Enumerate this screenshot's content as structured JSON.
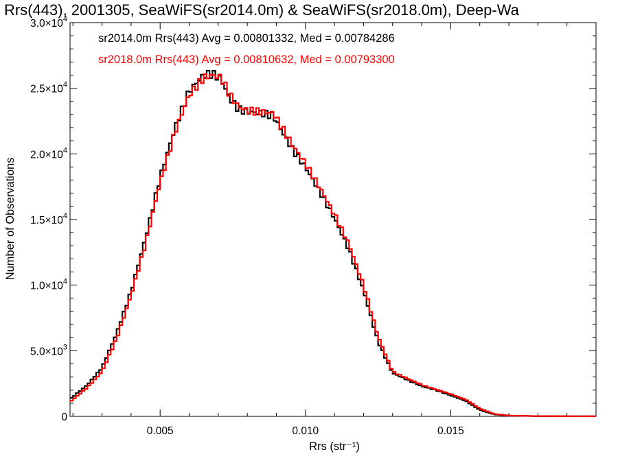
{
  "chart_data": {
    "type": "step",
    "title": "Rrs(443), 2001305, SeaWiFS(sr2014.0m) & SeaWiFS(sr2018.0m), Deep-Wa",
    "xlabel": "Rrs (str⁻¹)",
    "ylabel": "Number of Observations",
    "xlim": [
      0.0019,
      0.02
    ],
    "ylim": [
      0,
      30000
    ],
    "x_ticks": [
      {
        "value": 0.005,
        "label": "0.005"
      },
      {
        "value": 0.01,
        "label": "0.010"
      },
      {
        "value": 0.015,
        "label": "0.015"
      }
    ],
    "y_ticks": [
      {
        "value": 0,
        "mantissa": "0",
        "exp": ""
      },
      {
        "value": 5000,
        "mantissa": "5.0×10",
        "exp": "3"
      },
      {
        "value": 10000,
        "mantissa": "1.0×10",
        "exp": "4"
      },
      {
        "value": 15000,
        "mantissa": "1.5×10",
        "exp": "4"
      },
      {
        "value": 20000,
        "mantissa": "2.0×10",
        "exp": "4"
      },
      {
        "value": 25000,
        "mantissa": "2.5×10",
        "exp": "4"
      },
      {
        "value": 30000,
        "mantissa": "3.0×10",
        "exp": "4"
      }
    ],
    "grid": false,
    "legend_position": "top-left",
    "series": [
      {
        "name": "sr2014.0m Rrs(443) Avg = 0.00801332, Med = 0.00784286",
        "color": "#000000",
        "points": [
          [
            0.0019,
            1300
          ],
          [
            0.0025,
            2400
          ],
          [
            0.003,
            3700
          ],
          [
            0.0035,
            6300
          ],
          [
            0.004,
            9500
          ],
          [
            0.0045,
            13600
          ],
          [
            0.005,
            18200
          ],
          [
            0.0055,
            21900
          ],
          [
            0.006,
            24800
          ],
          [
            0.0065,
            26000
          ],
          [
            0.0068,
            26100
          ],
          [
            0.0071,
            25700
          ],
          [
            0.0074,
            24200
          ],
          [
            0.0077,
            23400
          ],
          [
            0.008,
            23200
          ],
          [
            0.0085,
            23100
          ],
          [
            0.0089,
            22900
          ],
          [
            0.0092,
            21700
          ],
          [
            0.0096,
            20200
          ],
          [
            0.01,
            19000
          ],
          [
            0.0105,
            17100
          ],
          [
            0.011,
            15100
          ],
          [
            0.0115,
            12700
          ],
          [
            0.012,
            9600
          ],
          [
            0.0125,
            5700
          ],
          [
            0.013,
            3300
          ],
          [
            0.0135,
            2800
          ],
          [
            0.014,
            2300
          ],
          [
            0.0145,
            2000
          ],
          [
            0.015,
            1600
          ],
          [
            0.0155,
            1200
          ],
          [
            0.016,
            500
          ],
          [
            0.0165,
            150
          ],
          [
            0.017,
            50
          ],
          [
            0.018,
            15
          ],
          [
            0.02,
            5
          ]
        ]
      },
      {
        "name": "sr2018.0m Rrs(443) Avg = 0.00810632, Med = 0.00793300",
        "color": "#ff0000",
        "points": [
          [
            0.0019,
            1100
          ],
          [
            0.0025,
            2200
          ],
          [
            0.003,
            3400
          ],
          [
            0.0035,
            5900
          ],
          [
            0.004,
            9200
          ],
          [
            0.0045,
            13200
          ],
          [
            0.005,
            17800
          ],
          [
            0.0055,
            21600
          ],
          [
            0.006,
            24500
          ],
          [
            0.0065,
            25800
          ],
          [
            0.0068,
            26000
          ],
          [
            0.0071,
            25800
          ],
          [
            0.0074,
            24500
          ],
          [
            0.0077,
            23600
          ],
          [
            0.008,
            23300
          ],
          [
            0.0085,
            23200
          ],
          [
            0.0089,
            23100
          ],
          [
            0.0092,
            22000
          ],
          [
            0.0096,
            20500
          ],
          [
            0.01,
            19300
          ],
          [
            0.0105,
            17400
          ],
          [
            0.011,
            15400
          ],
          [
            0.0115,
            13100
          ],
          [
            0.012,
            10000
          ],
          [
            0.0125,
            6100
          ],
          [
            0.013,
            3400
          ],
          [
            0.0135,
            2900
          ],
          [
            0.014,
            2400
          ],
          [
            0.0145,
            2050
          ],
          [
            0.015,
            1700
          ],
          [
            0.0155,
            1300
          ],
          [
            0.016,
            600
          ],
          [
            0.0165,
            180
          ],
          [
            0.017,
            60
          ],
          [
            0.018,
            18
          ],
          [
            0.02,
            5
          ]
        ]
      }
    ]
  }
}
